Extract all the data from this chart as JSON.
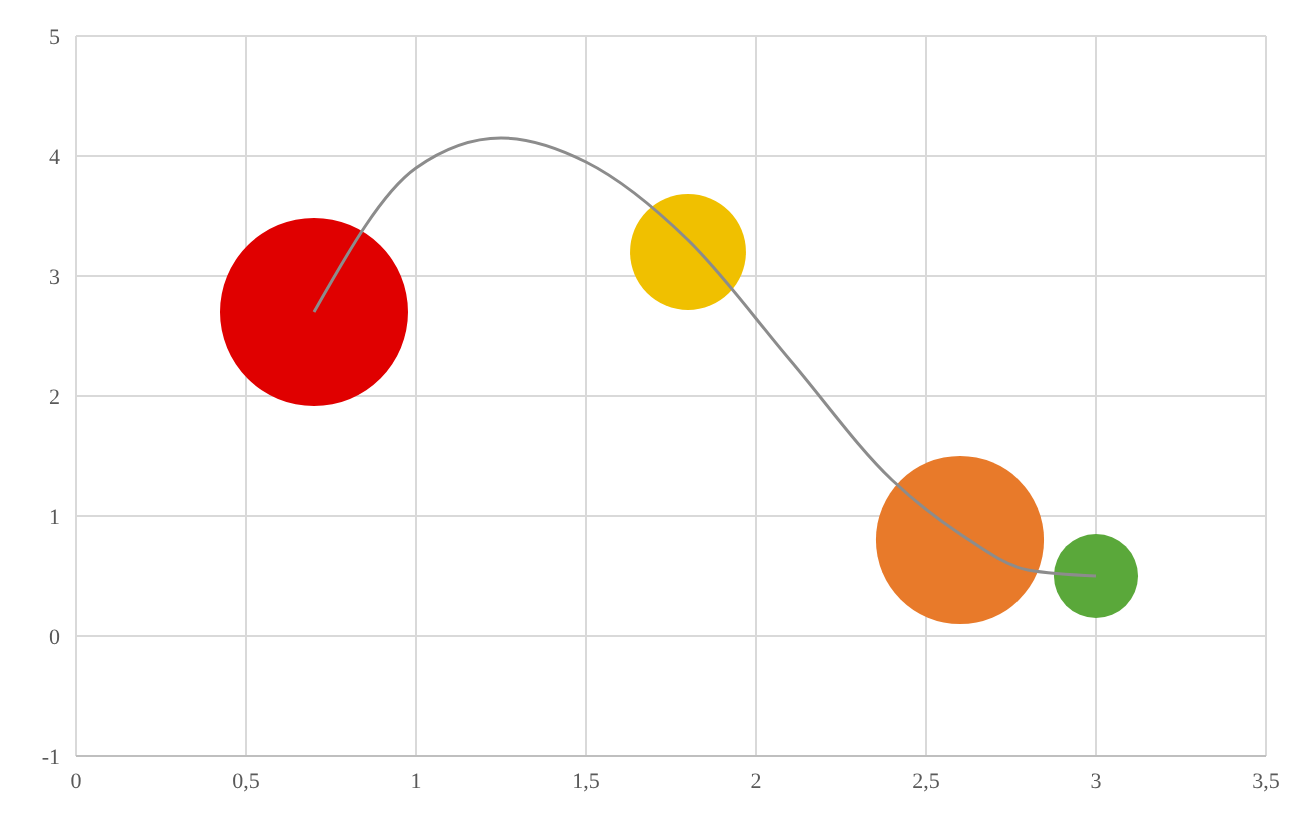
{
  "chart_data": {
    "type": "bubble",
    "x": [
      0.7,
      1.8,
      2.6,
      3.0
    ],
    "values": [
      2.7,
      3.2,
      0.8,
      0.5
    ],
    "sizes": [
      1,
      0.38,
      0.8,
      0.2
    ],
    "colors": [
      "#e00000",
      "#f0c000",
      "#e87a2a",
      "#5aa83a"
    ],
    "series": [
      {
        "type": "line",
        "color": "#8c8c8c",
        "x": [
          0.7,
          1.0,
          1.25,
          1.5,
          1.8,
          2.1,
          2.4,
          2.6,
          2.8,
          3.0
        ],
        "values": [
          2.7,
          3.9,
          4.15,
          3.95,
          3.3,
          2.3,
          1.3,
          0.85,
          0.55,
          0.5
        ]
      }
    ],
    "xlim": [
      0,
      3.5
    ],
    "xticks": [
      0,
      {
        "value": 0.5,
        "label": "0,5"
      },
      1,
      {
        "value": 1.5,
        "label": "1,5"
      },
      2,
      {
        "value": 2.5,
        "label": "2,5"
      },
      3,
      {
        "value": 3.5,
        "label": "3,5"
      }
    ],
    "ylim": [
      -1,
      5
    ],
    "yticks": [
      -1,
      0,
      1,
      2,
      3,
      4,
      5
    ],
    "grid": true,
    "legend": false
  }
}
